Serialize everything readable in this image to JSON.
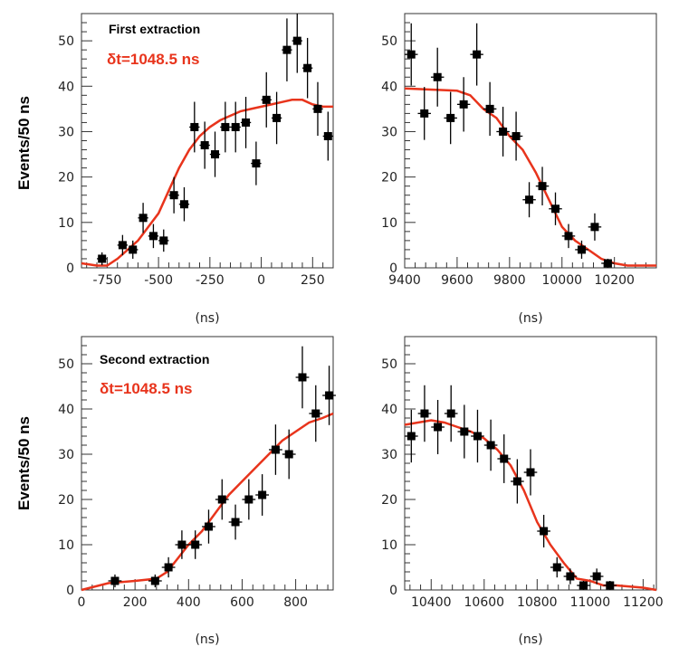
{
  "colors": {
    "fit": "#e8341c",
    "data": "#000000",
    "annotation": "#e8341c"
  },
  "chart_data": [
    {
      "type": "scatter",
      "title": "First extraction",
      "annotation": "δt=1048.5 ns",
      "xlabel": "(ns)",
      "ylabel": "Events/50 ns",
      "xlim": [
        -875,
        350
      ],
      "ylim": [
        0,
        56
      ],
      "xticks": [
        -750,
        -500,
        -250,
        0,
        250
      ],
      "xtick_labels": [
        "-750",
        "-500",
        "-250",
        "0",
        "250"
      ],
      "yticks": [
        0,
        10,
        20,
        30,
        40,
        50
      ],
      "ytick_labels": [
        "0",
        "10",
        "20",
        "30",
        "40",
        "50"
      ],
      "grid": false,
      "error_bars": true,
      "x": [
        -775,
        -675,
        -625,
        -575,
        -525,
        -475,
        -425,
        -375,
        -325,
        -275,
        -225,
        -175,
        -125,
        -75,
        -25,
        25,
        75,
        125,
        175,
        225,
        275,
        325
      ],
      "y": [
        2,
        5,
        4,
        11,
        7,
        6,
        16,
        14,
        31,
        27,
        25,
        31,
        31,
        32,
        23,
        37,
        33,
        48,
        50,
        44,
        35,
        29
      ],
      "fit": {
        "x": [
          -875,
          -800,
          -750,
          -700,
          -650,
          -600,
          -550,
          -500,
          -450,
          -400,
          -350,
          -300,
          -250,
          -200,
          -150,
          -100,
          -50,
          0,
          50,
          100,
          150,
          200,
          250,
          300,
          350
        ],
        "y": [
          1,
          0.5,
          0.5,
          2,
          4,
          6,
          9,
          12,
          17,
          22,
          26,
          29,
          31,
          32.5,
          33.5,
          34.5,
          35,
          35.5,
          36,
          36.5,
          37,
          37,
          36,
          35.5,
          35.5
        ]
      }
    },
    {
      "type": "scatter",
      "title": "",
      "xlabel": "(ns)",
      "ylabel": "",
      "xlim": [
        9400,
        10360
      ],
      "ylim": [
        0,
        56
      ],
      "xticks": [
        9400,
        9600,
        9800,
        10000,
        10200
      ],
      "xtick_labels": [
        "9400",
        "9600",
        "9800",
        "10000",
        "10200"
      ],
      "yticks": [
        0,
        10,
        20,
        30,
        40,
        50
      ],
      "ytick_labels": [
        "0",
        "10",
        "20",
        "30",
        "40",
        "50"
      ],
      "grid": false,
      "error_bars": true,
      "x": [
        9425,
        9475,
        9525,
        9575,
        9625,
        9675,
        9725,
        9775,
        9825,
        9875,
        9925,
        9975,
        10025,
        10075,
        10125,
        10175
      ],
      "y": [
        47,
        34,
        42,
        33,
        36,
        47,
        35,
        30,
        29,
        15,
        18,
        13,
        7,
        4,
        9,
        1
      ],
      "fit": {
        "x": [
          9400,
          9600,
          9650,
          9700,
          9750,
          9800,
          9850,
          9900,
          9950,
          10000,
          10050,
          10100,
          10150,
          10200,
          10250,
          10360
        ],
        "y": [
          39.5,
          39,
          38,
          35,
          33,
          29,
          26,
          21,
          15,
          9,
          6,
          4,
          2,
          1,
          0.5,
          0.5
        ]
      }
    },
    {
      "type": "scatter",
      "title": "Second extraction",
      "annotation": "δt=1048.5 ns",
      "xlabel": "(ns)",
      "ylabel": "Events/50 ns",
      "xlim": [
        0,
        940
      ],
      "ylim": [
        0,
        56
      ],
      "xticks": [
        0,
        200,
        400,
        600,
        800
      ],
      "xtick_labels": [
        "0",
        "200",
        "400",
        "600",
        "800"
      ],
      "yticks": [
        0,
        10,
        20,
        30,
        40,
        50
      ],
      "ytick_labels": [
        "0",
        "10",
        "20",
        "30",
        "40",
        "50"
      ],
      "grid": false,
      "error_bars": true,
      "x": [
        125,
        275,
        325,
        375,
        425,
        475,
        525,
        575,
        625,
        675,
        725,
        775,
        825,
        875,
        925
      ],
      "y": [
        2,
        2,
        5,
        10,
        10,
        14,
        20,
        15,
        20,
        21,
        31,
        30,
        47,
        39,
        43
      ],
      "fit": {
        "x": [
          0,
          100,
          200,
          280,
          320,
          360,
          400,
          450,
          500,
          550,
          600,
          650,
          700,
          750,
          800,
          850,
          900,
          940
        ],
        "y": [
          0,
          1.5,
          2,
          2.5,
          4,
          7,
          10,
          13,
          17,
          21,
          24,
          27,
          30,
          33,
          35,
          37,
          38,
          39
        ]
      }
    },
    {
      "type": "scatter",
      "title": "",
      "xlabel": "(ns)",
      "ylabel": "",
      "xlim": [
        10300,
        11250
      ],
      "ylim": [
        0,
        56
      ],
      "xticks": [
        10400,
        10600,
        10800,
        11000,
        11200
      ],
      "xtick_labels": [
        "10400",
        "10600",
        "10800",
        "11000",
        "11200"
      ],
      "yticks": [
        0,
        10,
        20,
        30,
        40,
        50
      ],
      "ytick_labels": [
        "0",
        "10",
        "20",
        "30",
        "40",
        "50"
      ],
      "grid": false,
      "error_bars": true,
      "x": [
        10325,
        10375,
        10425,
        10475,
        10525,
        10575,
        10625,
        10675,
        10725,
        10775,
        10825,
        10875,
        10925,
        10975,
        11025,
        11075
      ],
      "y": [
        34,
        39,
        36,
        39,
        35,
        34,
        32,
        29,
        24,
        26,
        13,
        5,
        3,
        1,
        3,
        1
      ],
      "fit": {
        "x": [
          10300,
          10350,
          10400,
          10450,
          10500,
          10550,
          10600,
          10650,
          10700,
          10750,
          10800,
          10850,
          10900,
          10950,
          11000,
          11050,
          11100,
          11200,
          11250
        ],
        "y": [
          36.5,
          37,
          37.5,
          37,
          36,
          35,
          33.5,
          31,
          27.5,
          22,
          15,
          10,
          6,
          2.5,
          2,
          1,
          1,
          0.5,
          0
        ]
      }
    }
  ]
}
